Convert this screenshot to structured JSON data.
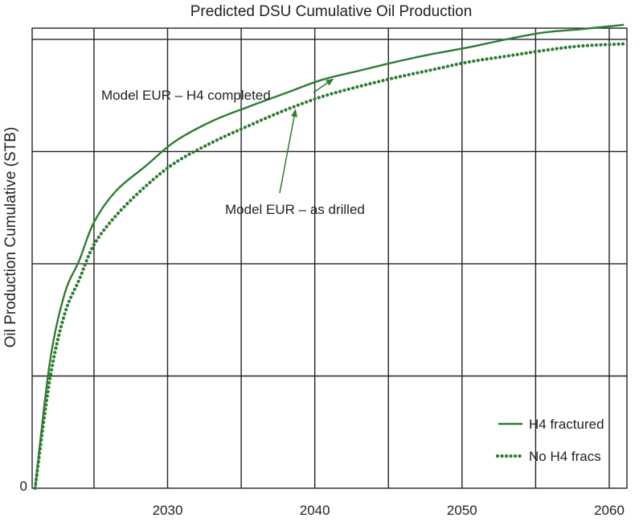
{
  "chart_data": {
    "type": "line",
    "title": "Predicted DSU Cumulative Oil Production",
    "xlabel": "",
    "ylabel": "Oil Production Cumulative (STB)",
    "xlim": [
      2020.8,
      2061.2
    ],
    "ylim": [
      0,
      4.1
    ],
    "x_ticks": [
      2030,
      2040,
      2050,
      2060
    ],
    "y_ticks": [
      0
    ],
    "x_grid": [
      2025,
      2030,
      2035,
      2040,
      2045,
      2050,
      2055,
      2060
    ],
    "y_grid": [
      1,
      2,
      3,
      4
    ],
    "grid": true,
    "legend_position": "bottom-right",
    "colors": {
      "series": "#2e7d32",
      "grid": "#222222",
      "text": "#222222"
    },
    "series": [
      {
        "name": "H4 fractured",
        "style": "solid",
        "x": [
          2021,
          2022,
          2023,
          2024,
          2025,
          2026.5,
          2028.5,
          2030.5,
          2033,
          2035.5,
          2038,
          2040.5,
          2043,
          2045.5,
          2048,
          2050.5,
          2053,
          2055.5,
          2058,
          2061
        ],
        "y": [
          0,
          1.12,
          1.73,
          2.03,
          2.37,
          2.65,
          2.87,
          3.09,
          3.27,
          3.4,
          3.52,
          3.64,
          3.72,
          3.8,
          3.87,
          3.93,
          4.0,
          4.06,
          4.09,
          4.13
        ]
      },
      {
        "name": "No H4 fracs",
        "style": "dotted",
        "x": [
          2021,
          2022,
          2023,
          2024,
          2025,
          2026.5,
          2028.5,
          2030.5,
          2033,
          2035.5,
          2038,
          2040.5,
          2043,
          2045.5,
          2048,
          2050.5,
          2053,
          2055.5,
          2058,
          2061
        ],
        "y": [
          0,
          0.97,
          1.55,
          1.86,
          2.17,
          2.43,
          2.69,
          2.9,
          3.08,
          3.23,
          3.37,
          3.49,
          3.58,
          3.66,
          3.73,
          3.8,
          3.85,
          3.9,
          3.94,
          3.96
        ]
      }
    ],
    "annotations": [
      {
        "text": "Model EUR – H4 completed",
        "target_series": 0,
        "target_x": 2041.3
      },
      {
        "text": "Model EUR – as drilled",
        "target_series": 1,
        "target_x": 2038.7
      }
    ]
  }
}
